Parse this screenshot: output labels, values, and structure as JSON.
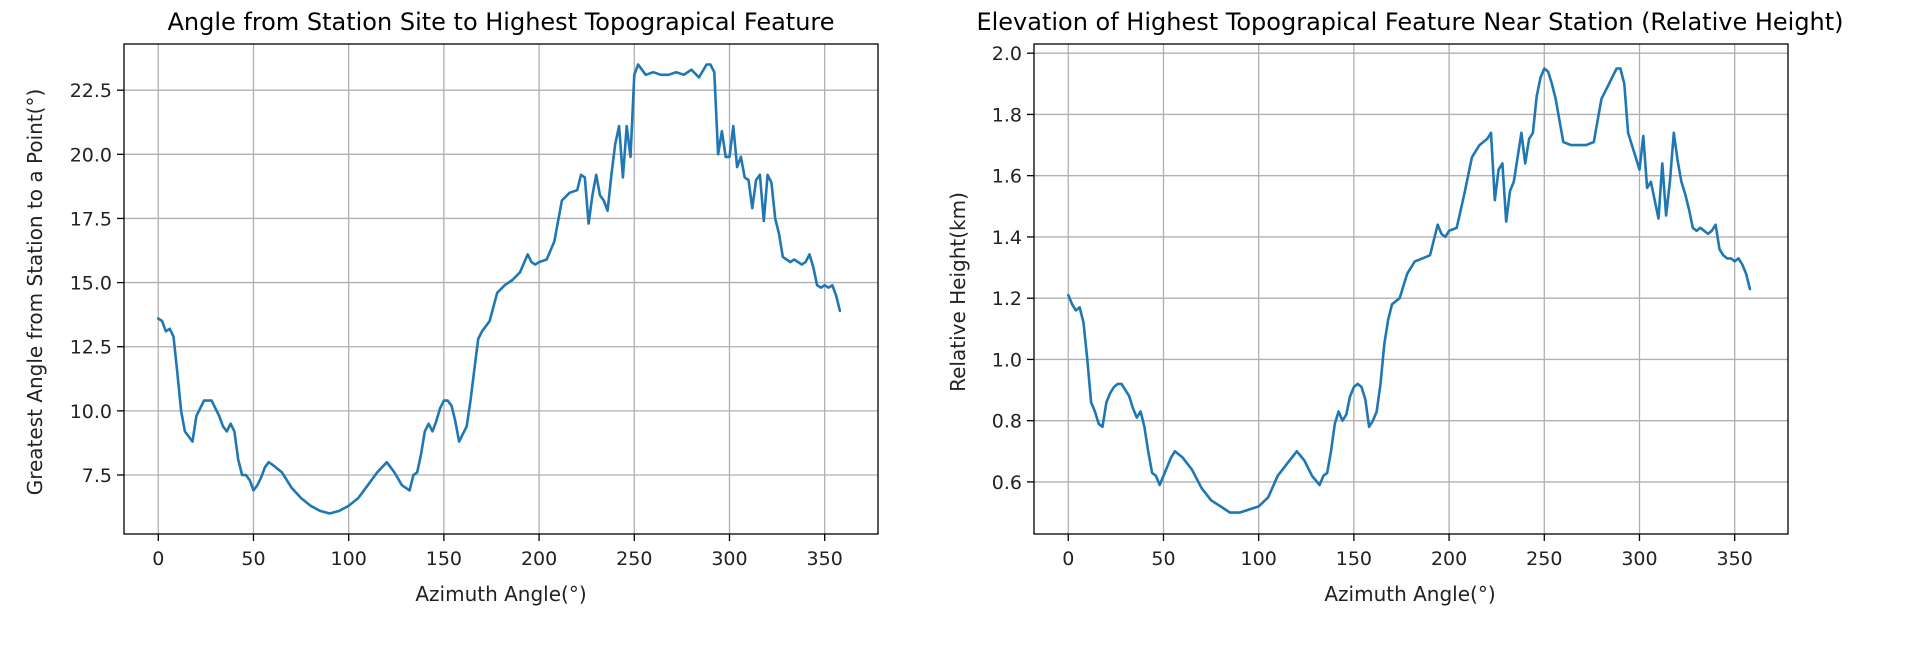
{
  "chart_data": [
    {
      "type": "line",
      "title": "Angle from Station Site to Highest Topograpical Feature",
      "xlabel": "Azimuth Angle(°)",
      "ylabel": "Greatest Angle from Station to a Point(°)",
      "xlim": [
        -18,
        378
      ],
      "ylim": [
        5.2,
        24.3
      ],
      "xticks": [
        0,
        50,
        100,
        150,
        200,
        250,
        300,
        350
      ],
      "xtick_labels": [
        "0",
        "50",
        "100",
        "150",
        "200",
        "250",
        "300",
        "350"
      ],
      "yticks": [
        7.5,
        10.0,
        12.5,
        15.0,
        17.5,
        20.0,
        22.5
      ],
      "ytick_labels": [
        "7.5",
        "10.0",
        "12.5",
        "15.0",
        "17.5",
        "20.0",
        "22.5"
      ],
      "grid": true,
      "color": "#1f77b4",
      "series": [
        {
          "x": [
            0,
            2,
            4,
            6,
            8,
            10,
            12,
            14,
            16,
            18,
            20,
            22,
            24,
            26,
            28,
            30,
            32,
            34,
            36,
            38,
            40,
            42,
            44,
            46,
            48,
            50,
            52,
            54,
            56,
            58,
            60,
            65,
            70,
            75,
            80,
            85,
            90,
            95,
            100,
            105,
            110,
            115,
            120,
            124,
            128,
            132,
            134,
            136,
            138,
            140,
            142,
            144,
            146,
            148,
            150,
            152,
            154,
            156,
            158,
            160,
            162,
            164,
            166,
            168,
            170,
            174,
            178,
            182,
            186,
            190,
            194,
            196,
            198,
            200,
            204,
            208,
            212,
            216,
            220,
            222,
            224,
            226,
            228,
            230,
            232,
            234,
            236,
            238,
            240,
            242,
            244,
            246,
            248,
            250,
            252,
            254,
            256,
            260,
            264,
            268,
            272,
            276,
            280,
            284,
            288,
            290,
            292,
            294,
            296,
            298,
            300,
            302,
            304,
            306,
            308,
            310,
            312,
            314,
            316,
            318,
            320,
            322,
            324,
            326,
            328,
            330,
            332,
            334,
            336,
            338,
            340,
            342,
            344,
            346,
            348,
            350,
            352,
            354,
            356,
            358
          ],
          "values": [
            13.6,
            13.5,
            13.1,
            13.2,
            12.9,
            11.5,
            10.0,
            9.2,
            9.0,
            8.8,
            9.8,
            10.1,
            10.4,
            10.4,
            10.4,
            10.1,
            9.8,
            9.4,
            9.2,
            9.5,
            9.2,
            8.1,
            7.5,
            7.5,
            7.3,
            6.9,
            7.1,
            7.4,
            7.8,
            8.0,
            7.9,
            7.6,
            7.0,
            6.6,
            6.3,
            6.1,
            6.0,
            6.1,
            6.3,
            6.6,
            7.1,
            7.6,
            8.0,
            7.6,
            7.1,
            6.9,
            7.5,
            7.6,
            8.3,
            9.2,
            9.5,
            9.2,
            9.6,
            10.1,
            10.4,
            10.4,
            10.2,
            9.6,
            8.8,
            9.1,
            9.4,
            10.4,
            11.6,
            12.8,
            13.1,
            13.5,
            14.6,
            14.9,
            15.1,
            15.4,
            16.1,
            15.8,
            15.7,
            15.8,
            15.9,
            16.6,
            18.2,
            18.5,
            18.6,
            19.2,
            19.1,
            17.3,
            18.4,
            19.2,
            18.4,
            18.2,
            17.8,
            19.2,
            20.4,
            21.1,
            19.1,
            21.1,
            19.9,
            23.1,
            23.5,
            23.3,
            23.1,
            23.2,
            23.1,
            23.1,
            23.2,
            23.1,
            23.3,
            23.0,
            23.5,
            23.5,
            23.2,
            20.0,
            20.9,
            19.9,
            19.9,
            21.1,
            19.5,
            19.9,
            19.1,
            19.0,
            17.9,
            19.0,
            19.2,
            17.4,
            19.2,
            18.9,
            17.5,
            16.9,
            16.0,
            15.9,
            15.8,
            15.9,
            15.8,
            15.7,
            15.8,
            16.1,
            15.6,
            14.9,
            14.8,
            14.9,
            14.8,
            14.9,
            14.5,
            13.9
          ]
        }
      ]
    },
    {
      "type": "line",
      "title": "Elevation of Highest Topograpical Feature Near Station (Relative Height)",
      "xlabel": "Azimuth Angle(°)",
      "ylabel": "Relative Height(km)",
      "xlim": [
        -18,
        378
      ],
      "ylim": [
        0.43,
        2.03
      ],
      "xticks": [
        0,
        50,
        100,
        150,
        200,
        250,
        300,
        350
      ],
      "xtick_labels": [
        "0",
        "50",
        "100",
        "150",
        "200",
        "250",
        "300",
        "350"
      ],
      "yticks": [
        0.6,
        0.8,
        1.0,
        1.2,
        1.4,
        1.6,
        1.8,
        2.0
      ],
      "ytick_labels": [
        "0.6",
        "0.8",
        "1.0",
        "1.2",
        "1.4",
        "1.6",
        "1.8",
        "2.0"
      ],
      "grid": true,
      "color": "#1f77b4",
      "series": [
        {
          "x": [
            0,
            2,
            4,
            6,
            8,
            10,
            12,
            14,
            16,
            18,
            20,
            22,
            24,
            26,
            28,
            30,
            32,
            34,
            36,
            38,
            40,
            42,
            44,
            46,
            48,
            50,
            52,
            54,
            56,
            58,
            60,
            65,
            70,
            75,
            80,
            85,
            90,
            95,
            100,
            105,
            110,
            115,
            120,
            124,
            128,
            132,
            134,
            136,
            138,
            140,
            142,
            144,
            146,
            148,
            150,
            152,
            154,
            156,
            158,
            160,
            162,
            164,
            166,
            168,
            170,
            174,
            178,
            182,
            186,
            190,
            194,
            196,
            198,
            200,
            204,
            208,
            212,
            216,
            220,
            222,
            224,
            226,
            228,
            230,
            232,
            234,
            236,
            238,
            240,
            242,
            244,
            246,
            248,
            250,
            252,
            254,
            256,
            260,
            264,
            268,
            272,
            276,
            280,
            284,
            288,
            290,
            292,
            294,
            296,
            298,
            300,
            302,
            304,
            306,
            308,
            310,
            312,
            314,
            316,
            318,
            320,
            322,
            324,
            326,
            328,
            330,
            332,
            334,
            336,
            338,
            340,
            342,
            344,
            346,
            348,
            350,
            352,
            354,
            356,
            358
          ],
          "values": [
            1.21,
            1.18,
            1.16,
            1.17,
            1.12,
            1.0,
            0.86,
            0.83,
            0.79,
            0.78,
            0.86,
            0.89,
            0.91,
            0.92,
            0.92,
            0.9,
            0.88,
            0.84,
            0.81,
            0.83,
            0.78,
            0.7,
            0.63,
            0.62,
            0.59,
            0.62,
            0.65,
            0.68,
            0.7,
            0.69,
            0.68,
            0.64,
            0.58,
            0.54,
            0.52,
            0.5,
            0.5,
            0.51,
            0.52,
            0.55,
            0.62,
            0.66,
            0.7,
            0.67,
            0.62,
            0.59,
            0.62,
            0.63,
            0.7,
            0.79,
            0.83,
            0.8,
            0.82,
            0.88,
            0.91,
            0.92,
            0.91,
            0.87,
            0.78,
            0.8,
            0.83,
            0.92,
            1.05,
            1.13,
            1.18,
            1.2,
            1.28,
            1.32,
            1.33,
            1.34,
            1.44,
            1.41,
            1.4,
            1.42,
            1.43,
            1.54,
            1.66,
            1.7,
            1.72,
            1.74,
            1.52,
            1.62,
            1.64,
            1.45,
            1.55,
            1.58,
            1.66,
            1.74,
            1.64,
            1.72,
            1.74,
            1.86,
            1.92,
            1.95,
            1.94,
            1.9,
            1.85,
            1.71,
            1.7,
            1.7,
            1.7,
            1.71,
            1.85,
            1.9,
            1.95,
            1.95,
            1.9,
            1.74,
            1.7,
            1.66,
            1.62,
            1.73,
            1.56,
            1.58,
            1.52,
            1.46,
            1.64,
            1.47,
            1.58,
            1.74,
            1.65,
            1.58,
            1.54,
            1.49,
            1.43,
            1.42,
            1.43,
            1.42,
            1.41,
            1.42,
            1.44,
            1.36,
            1.34,
            1.33,
            1.33,
            1.32,
            1.33,
            1.31,
            1.28,
            1.23
          ]
        }
      ]
    }
  ]
}
